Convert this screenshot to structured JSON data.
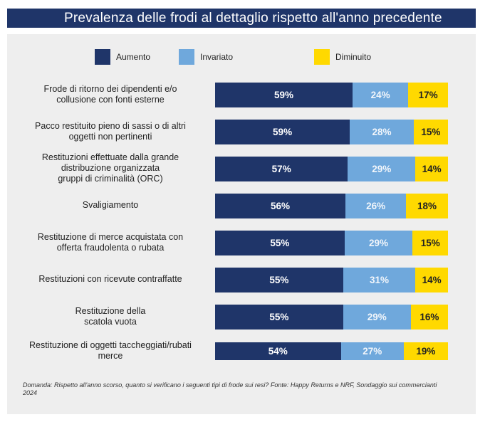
{
  "header": {
    "title": "Prevalenza delle frodi al dettaglio rispetto all'anno precedente"
  },
  "colors": {
    "aumento": "#1f3569",
    "invariato": "#6fa8dc",
    "diminuito": "#ffd900",
    "header_bg": "#1f3569",
    "panel_bg": "#eeeeee"
  },
  "chart_data": {
    "type": "bar",
    "orientation": "horizontal",
    "stacked": true,
    "title": "Prevalenza delle frodi al dettaglio rispetto all'anno precedente",
    "legend_position": "top",
    "legend": [
      "Aumento",
      "Invariato",
      "Diminuito"
    ],
    "categories": [
      "Frode di ritorno dei dipendenti e/o collusione con fonti esterne",
      "Pacco restituito pieno di sassi o di altri oggetti non pertinenti",
      "Restituzioni effettuate dalla grande distribuzione organizzata gruppi di criminalità (ORC)",
      "Svaligiamento",
      "Restituzione di merce acquistata con offerta fraudolenta o rubata",
      "Restituzioni con ricevute contraffatte",
      "Restituzione della scatola vuota",
      "Restituzione di oggetti taccheggiati/rubati merce"
    ],
    "category_lines": [
      [
        "Frode di ritorno dei dipendenti e/o",
        "collusione con fonti esterne"
      ],
      [
        "Pacco restituito pieno di sassi o di altri",
        "oggetti non pertinenti"
      ],
      [
        "Restituzioni effettuate dalla grande",
        "distribuzione organizzata",
        "gruppi di criminalità (ORC)"
      ],
      [
        "Svaligiamento"
      ],
      [
        "Restituzione di merce acquistata con",
        "offerta fraudolenta o rubata"
      ],
      [
        "Restituzioni con ricevute contraffatte"
      ],
      [
        "Restituzione della",
        "scatola vuota"
      ],
      [
        "Restituzione di oggetti taccheggiati/rubati",
        "merce"
      ]
    ],
    "series": [
      {
        "name": "Aumento",
        "values": [
          59,
          59,
          57,
          56,
          55,
          55,
          55,
          54
        ]
      },
      {
        "name": "Invariato",
        "values": [
          24,
          28,
          29,
          26,
          29,
          31,
          29,
          27
        ]
      },
      {
        "name": "Diminuito",
        "values": [
          17,
          15,
          14,
          18,
          15,
          14,
          16,
          19
        ]
      }
    ],
    "value_suffix": "%",
    "xlabel": "",
    "ylabel": ""
  },
  "footnote": "Domanda: Rispetto all'anno scorso, quanto si verificano i seguenti tipi di frode sui resi? Fonte: Happy Returns e NRF, Sondaggio sui commercianti 2024"
}
